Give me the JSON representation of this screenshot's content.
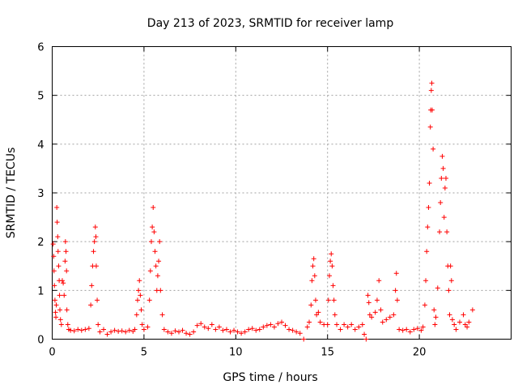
{
  "chart_data": {
    "type": "scatter",
    "title": "Day 213 of 2023, SRMTID for receiver lamp",
    "xlabel": "GPS time / hours",
    "ylabel": "SRMTID / TECUs",
    "xlim": [
      0,
      25
    ],
    "ylim": [
      0,
      6
    ],
    "xticks": [
      0,
      5,
      10,
      15,
      20
    ],
    "yticks": [
      0,
      1,
      2,
      3,
      4,
      5,
      6
    ],
    "grid": true,
    "marker": "+",
    "color": "#ff0000",
    "series": [
      {
        "name": "SRMTID",
        "points": [
          [
            0.05,
            1.95
          ],
          [
            0.08,
            1.7
          ],
          [
            0.1,
            1.4
          ],
          [
            0.12,
            1.1
          ],
          [
            0.15,
            0.8
          ],
          [
            0.18,
            0.55
          ],
          [
            0.2,
            0.45
          ],
          [
            0.22,
            0.7
          ],
          [
            0.25,
            2.7
          ],
          [
            0.27,
            2.4
          ],
          [
            0.3,
            2.1
          ],
          [
            0.32,
            1.8
          ],
          [
            0.35,
            1.5
          ],
          [
            0.38,
            1.2
          ],
          [
            0.4,
            0.9
          ],
          [
            0.42,
            0.6
          ],
          [
            0.45,
            0.4
          ],
          [
            0.5,
            0.3
          ],
          [
            0.55,
            1.2
          ],
          [
            0.6,
            1.15
          ],
          [
            0.65,
            0.9
          ],
          [
            0.7,
            1.6
          ],
          [
            0.72,
            2.0
          ],
          [
            0.75,
            1.8
          ],
          [
            0.78,
            1.4
          ],
          [
            0.8,
            0.6
          ],
          [
            0.85,
            0.3
          ],
          [
            0.9,
            0.2
          ],
          [
            1.0,
            0.18
          ],
          [
            1.2,
            0.17
          ],
          [
            1.4,
            0.2
          ],
          [
            1.6,
            0.18
          ],
          [
            1.8,
            0.2
          ],
          [
            2.0,
            0.22
          ],
          [
            2.1,
            0.7
          ],
          [
            2.15,
            1.1
          ],
          [
            2.2,
            1.5
          ],
          [
            2.25,
            1.8
          ],
          [
            2.3,
            2.0
          ],
          [
            2.35,
            2.3
          ],
          [
            2.38,
            2.1
          ],
          [
            2.4,
            1.5
          ],
          [
            2.45,
            0.8
          ],
          [
            2.5,
            0.3
          ],
          [
            2.6,
            0.15
          ],
          [
            2.8,
            0.2
          ],
          [
            3.0,
            0.1
          ],
          [
            3.2,
            0.15
          ],
          [
            3.4,
            0.18
          ],
          [
            3.6,
            0.16
          ],
          [
            3.8,
            0.17
          ],
          [
            4.0,
            0.15
          ],
          [
            4.2,
            0.18
          ],
          [
            4.4,
            0.16
          ],
          [
            4.5,
            0.2
          ],
          [
            4.6,
            0.5
          ],
          [
            4.65,
            0.8
          ],
          [
            4.7,
            1.0
          ],
          [
            4.75,
            1.2
          ],
          [
            4.8,
            0.9
          ],
          [
            4.85,
            0.6
          ],
          [
            4.9,
            0.3
          ],
          [
            5.0,
            0.2
          ],
          [
            5.2,
            0.25
          ],
          [
            5.3,
            0.8
          ],
          [
            5.35,
            1.4
          ],
          [
            5.4,
            2.0
          ],
          [
            5.45,
            2.3
          ],
          [
            5.5,
            2.7
          ],
          [
            5.55,
            2.2
          ],
          [
            5.6,
            1.8
          ],
          [
            5.65,
            1.5
          ],
          [
            5.7,
            1.0
          ],
          [
            5.75,
            1.3
          ],
          [
            5.8,
            1.6
          ],
          [
            5.85,
            2.0
          ],
          [
            5.9,
            1.0
          ],
          [
            6.0,
            0.5
          ],
          [
            6.1,
            0.2
          ],
          [
            6.3,
            0.15
          ],
          [
            6.5,
            0.12
          ],
          [
            6.7,
            0.17
          ],
          [
            6.9,
            0.15
          ],
          [
            7.1,
            0.18
          ],
          [
            7.3,
            0.12
          ],
          [
            7.5,
            0.1
          ],
          [
            7.7,
            0.15
          ],
          [
            7.9,
            0.28
          ],
          [
            8.1,
            0.32
          ],
          [
            8.3,
            0.25
          ],
          [
            8.5,
            0.22
          ],
          [
            8.7,
            0.3
          ],
          [
            8.9,
            0.2
          ],
          [
            9.1,
            0.25
          ],
          [
            9.3,
            0.18
          ],
          [
            9.5,
            0.2
          ],
          [
            9.7,
            0.15
          ],
          [
            9.9,
            0.18
          ],
          [
            10.1,
            0.15
          ],
          [
            10.3,
            0.12
          ],
          [
            10.5,
            0.15
          ],
          [
            10.7,
            0.2
          ],
          [
            10.9,
            0.22
          ],
          [
            11.1,
            0.18
          ],
          [
            11.3,
            0.2
          ],
          [
            11.5,
            0.25
          ],
          [
            11.7,
            0.28
          ],
          [
            11.9,
            0.3
          ],
          [
            12.1,
            0.25
          ],
          [
            12.3,
            0.32
          ],
          [
            12.5,
            0.35
          ],
          [
            12.7,
            0.28
          ],
          [
            12.9,
            0.2
          ],
          [
            13.1,
            0.18
          ],
          [
            13.3,
            0.15
          ],
          [
            13.5,
            0.12
          ],
          [
            13.7,
            0.0
          ],
          [
            13.9,
            0.25
          ],
          [
            14.0,
            0.35
          ],
          [
            14.1,
            0.7
          ],
          [
            14.15,
            1.2
          ],
          [
            14.2,
            1.5
          ],
          [
            14.25,
            1.65
          ],
          [
            14.3,
            1.3
          ],
          [
            14.35,
            0.8
          ],
          [
            14.4,
            0.5
          ],
          [
            14.5,
            0.55
          ],
          [
            14.6,
            0.35
          ],
          [
            14.8,
            0.3
          ],
          [
            15.0,
            0.3
          ],
          [
            15.05,
            0.8
          ],
          [
            15.1,
            1.3
          ],
          [
            15.15,
            1.6
          ],
          [
            15.2,
            1.75
          ],
          [
            15.25,
            1.5
          ],
          [
            15.3,
            1.1
          ],
          [
            15.35,
            0.8
          ],
          [
            15.4,
            0.5
          ],
          [
            15.5,
            0.3
          ],
          [
            15.7,
            0.2
          ],
          [
            15.9,
            0.3
          ],
          [
            16.1,
            0.25
          ],
          [
            16.3,
            0.3
          ],
          [
            16.5,
            0.2
          ],
          [
            16.7,
            0.25
          ],
          [
            16.9,
            0.3
          ],
          [
            17.0,
            0.1
          ],
          [
            17.1,
            0.0
          ],
          [
            17.2,
            0.9
          ],
          [
            17.25,
            0.75
          ],
          [
            17.3,
            0.5
          ],
          [
            17.4,
            0.45
          ],
          [
            17.6,
            0.55
          ],
          [
            17.7,
            0.8
          ],
          [
            17.8,
            1.2
          ],
          [
            17.9,
            0.6
          ],
          [
            18.0,
            0.35
          ],
          [
            18.2,
            0.4
          ],
          [
            18.4,
            0.45
          ],
          [
            18.6,
            0.5
          ],
          [
            18.7,
            1.0
          ],
          [
            18.75,
            1.35
          ],
          [
            18.8,
            0.8
          ],
          [
            18.9,
            0.2
          ],
          [
            19.1,
            0.18
          ],
          [
            19.3,
            0.2
          ],
          [
            19.5,
            0.15
          ],
          [
            19.7,
            0.2
          ],
          [
            19.9,
            0.22
          ],
          [
            20.1,
            0.18
          ],
          [
            20.2,
            0.25
          ],
          [
            20.3,
            0.7
          ],
          [
            20.35,
            1.2
          ],
          [
            20.4,
            1.8
          ],
          [
            20.45,
            2.3
          ],
          [
            20.5,
            2.7
          ],
          [
            20.55,
            3.2
          ],
          [
            20.6,
            4.35
          ],
          [
            20.62,
            4.7
          ],
          [
            20.65,
            5.1
          ],
          [
            20.68,
            5.25
          ],
          [
            20.7,
            4.7
          ],
          [
            20.75,
            3.9
          ],
          [
            20.8,
            0.6
          ],
          [
            20.85,
            0.3
          ],
          [
            20.9,
            0.45
          ],
          [
            21.0,
            1.05
          ],
          [
            21.1,
            2.2
          ],
          [
            21.15,
            2.8
          ],
          [
            21.2,
            3.3
          ],
          [
            21.25,
            3.75
          ],
          [
            21.3,
            3.5
          ],
          [
            21.35,
            2.5
          ],
          [
            21.4,
            3.1
          ],
          [
            21.45,
            3.3
          ],
          [
            21.5,
            2.2
          ],
          [
            21.55,
            1.5
          ],
          [
            21.6,
            1.0
          ],
          [
            21.65,
            0.5
          ],
          [
            21.7,
            1.5
          ],
          [
            21.75,
            1.2
          ],
          [
            21.8,
            0.4
          ],
          [
            21.9,
            0.3
          ],
          [
            22.0,
            0.2
          ],
          [
            22.2,
            0.35
          ],
          [
            22.4,
            0.5
          ],
          [
            22.5,
            0.3
          ],
          [
            22.6,
            0.25
          ],
          [
            22.7,
            0.35
          ],
          [
            22.9,
            0.6
          ]
        ]
      }
    ]
  }
}
